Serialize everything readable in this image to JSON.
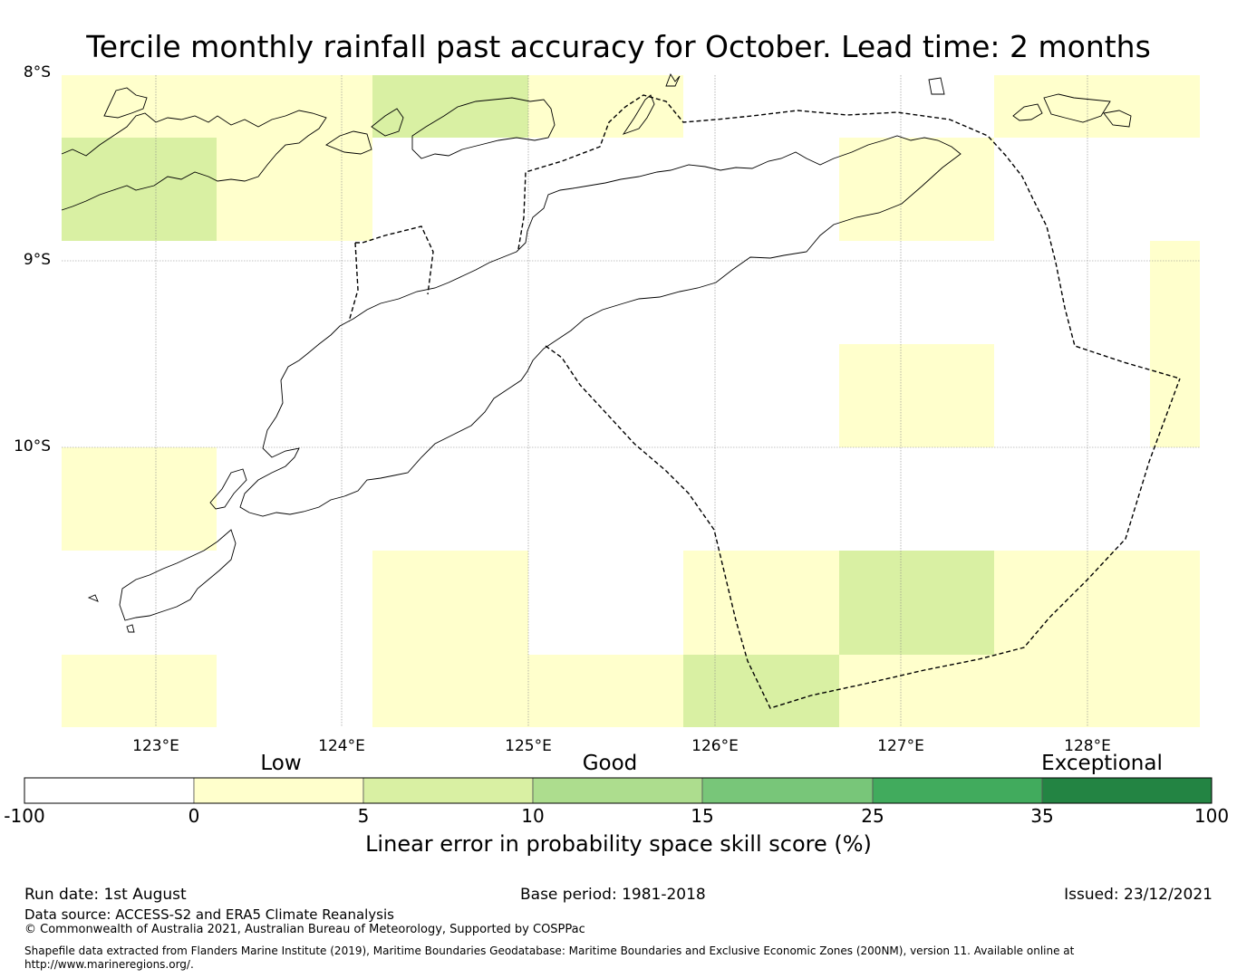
{
  "title": "Tercile monthly rainfall past accuracy for October. Lead time: 2 months",
  "map": {
    "lat_labels": [
      "8°S",
      "9°S",
      "10°S"
    ],
    "lon_labels": [
      "123°E",
      "124°E",
      "125°E",
      "126°E",
      "127°E",
      "128°E"
    ],
    "lon_range": [
      122.5,
      128.6
    ],
    "lat_range": [
      -11.5,
      -8.0
    ],
    "grid_cell_deg": 0.83,
    "cells": [
      {
        "row": 0,
        "col": 0,
        "class": 1
      },
      {
        "row": 0,
        "col": 1,
        "class": 1
      },
      {
        "row": 0,
        "col": 2,
        "class": 2
      },
      {
        "row": 0,
        "col": 3,
        "class": 1
      },
      {
        "row": 0,
        "col": 6,
        "class": 1
      },
      {
        "row": 0,
        "col": 7,
        "class": 1
      },
      {
        "row": 1,
        "col": 0,
        "class": 2
      },
      {
        "row": 1,
        "col": 1,
        "class": 1
      },
      {
        "row": 1,
        "col": 5,
        "class": 1
      },
      {
        "row": 2,
        "col": 7,
        "class": 1
      },
      {
        "row": 3,
        "col": 5,
        "class": 1
      },
      {
        "row": 3,
        "col": 7,
        "class": 1
      },
      {
        "row": 4,
        "col": 0,
        "class": 1
      },
      {
        "row": 5,
        "col": 2,
        "class": 1
      },
      {
        "row": 5,
        "col": 4,
        "class": 1
      },
      {
        "row": 5,
        "col": 5,
        "class": 2
      },
      {
        "row": 5,
        "col": 6,
        "class": 1
      },
      {
        "row": 5,
        "col": 7,
        "class": 1
      },
      {
        "row": 6,
        "col": 0,
        "class": 1
      },
      {
        "row": 6,
        "col": 2,
        "class": 1
      },
      {
        "row": 6,
        "col": 3,
        "class": 1
      },
      {
        "row": 6,
        "col": 4,
        "class": 2
      },
      {
        "row": 6,
        "col": 5,
        "class": 1
      },
      {
        "row": 6,
        "col": 6,
        "class": 1
      },
      {
        "row": 6,
        "col": 7,
        "class": 1
      }
    ],
    "coastline_color": "#000000",
    "boundary_style": "dashed"
  },
  "colorbar": {
    "category_labels": [
      "Low",
      "Good",
      "Exceptional"
    ],
    "ticks": [
      "-100",
      "0",
      "5",
      "10",
      "15",
      "25",
      "35",
      "100"
    ],
    "colors": [
      "#ffffff",
      "#ffffcc",
      "#d9f0a3",
      "#addd8e",
      "#78c679",
      "#41ab5d",
      "#238443"
    ],
    "label": "Linear error in probability space skill score (%)"
  },
  "footer": {
    "run_date": "Run date: 1st August",
    "base_period": "Base period: 1981-2018",
    "issued": "Issued: 23/12/2021",
    "data_source": "Data source: ACCESS-S2 and ERA5 Climate Reanalysis",
    "copyright": "© Commonwealth of Australia 2021, Australian Bureau of Meteorology, Supported by COSPPac",
    "shapefile": "Shapefile data extracted from Flanders Marine Institute (2019), Maritime Boundaries Geodatabase: Maritime Boundaries and Exclusive Economic Zones (200NM), version 11. Available online at http://www.marineregions.org/."
  }
}
